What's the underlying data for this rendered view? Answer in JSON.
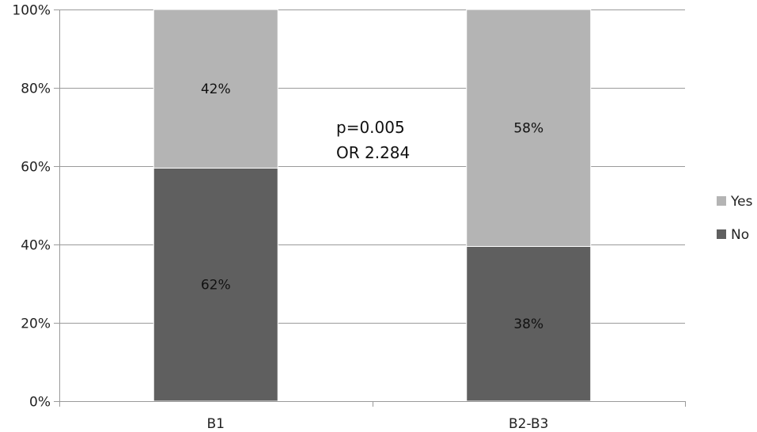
{
  "chart_data": {
    "type": "bar",
    "stacked": true,
    "percent": true,
    "categories": [
      "B1",
      "B2-B3"
    ],
    "series": [
      {
        "name": "No",
        "values": [
          59.5,
          39.5
        ],
        "labels": [
          "62%",
          "38%"
        ],
        "color": "#5f5f5f"
      },
      {
        "name": "Yes",
        "values": [
          40.5,
          60.5
        ],
        "labels": [
          "42%",
          "58%"
        ],
        "color": "#b4b4b4"
      }
    ],
    "ylim": [
      0,
      100
    ],
    "yticks": [
      "0%",
      "20%",
      "40%",
      "60%",
      "80%",
      "100%"
    ],
    "grid": true,
    "legend": "right",
    "annotation": [
      "p=0.005",
      "OR 2.284"
    ],
    "gridline_color": "#9a9a9a"
  }
}
